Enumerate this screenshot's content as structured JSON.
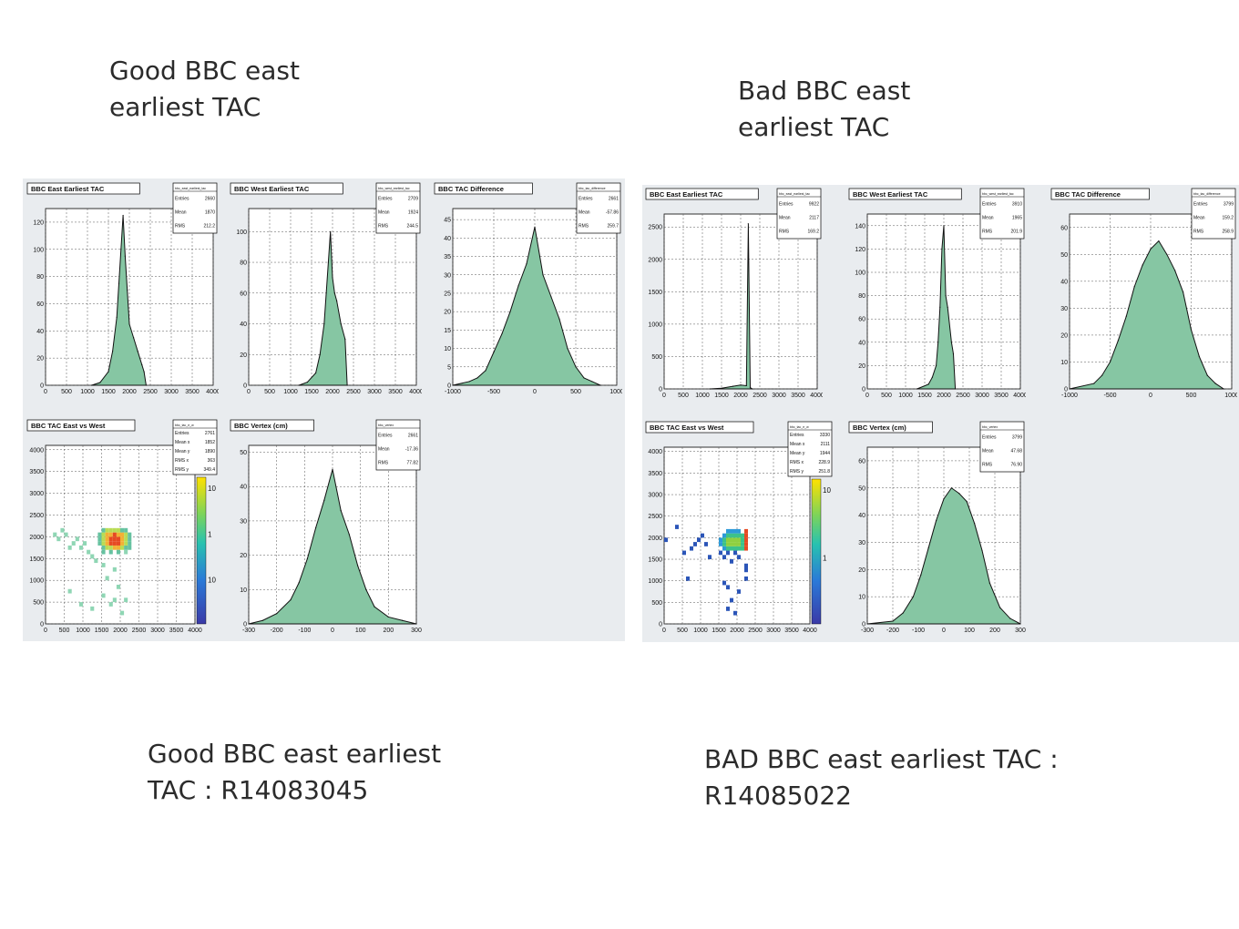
{
  "captions": {
    "top_left": "Good BBC east\nearliest TAC",
    "top_right": "Bad BBC east\nearliest TAC",
    "bottom_left": "Good BBC east earliest\nTAC : R14083045",
    "bottom_right": "BAD BBC east earliest TAC :\nR14085022"
  },
  "stat_labels": [
    "Entries",
    "Mean",
    "RMS"
  ],
  "stat_labels_2d": [
    "Entries",
    "Mean x",
    "Mean y",
    "RMS x",
    "RMS y"
  ],
  "chart_data": [
    {
      "id": "good-east",
      "type": "bar",
      "title": "BBC East Earliest TAC",
      "statname": "bbc_east_earliest_tac",
      "stats": [
        "2660",
        "1870",
        "212.2"
      ],
      "xlim": [
        0,
        4000
      ],
      "ylim": [
        0,
        130
      ],
      "xticks": [
        0,
        500,
        1000,
        1500,
        2000,
        2500,
        3000,
        3500,
        4000
      ],
      "yticks": [
        0,
        20,
        40,
        60,
        80,
        100,
        120
      ],
      "x": [
        1100,
        1300,
        1500,
        1600,
        1700,
        1750,
        1800,
        1850,
        1900,
        1950,
        2000,
        2100,
        2200,
        2300,
        2350,
        2400
      ],
      "y": [
        0,
        2,
        10,
        25,
        50,
        75,
        100,
        125,
        95,
        70,
        45,
        35,
        25,
        15,
        10,
        0
      ]
    },
    {
      "id": "good-west",
      "type": "bar",
      "title": "BBC West Earliest TAC",
      "statname": "bbc_west_earliest_tac",
      "stats": [
        "2709",
        "1924",
        "244.5"
      ],
      "xlim": [
        0,
        4000
      ],
      "ylim": [
        0,
        115
      ],
      "xticks": [
        0,
        500,
        1000,
        1500,
        2000,
        2500,
        3000,
        3500,
        4000
      ],
      "yticks": [
        0,
        20,
        40,
        60,
        80,
        100
      ],
      "x": [
        1200,
        1400,
        1600,
        1700,
        1800,
        1850,
        1900,
        1950,
        2000,
        2050,
        2100,
        2200,
        2300,
        2350
      ],
      "y": [
        0,
        2,
        8,
        20,
        40,
        60,
        80,
        100,
        70,
        60,
        55,
        40,
        30,
        0
      ]
    },
    {
      "id": "good-diff",
      "type": "bar",
      "title": "BBC TAC Difference",
      "statname": "bbc_tac_difference",
      "stats": [
        "2661",
        "-57.86",
        "259.7"
      ],
      "xlim": [
        -1000,
        1000
      ],
      "ylim": [
        0,
        48
      ],
      "xticks": [
        -1000,
        -500,
        0,
        500,
        1000
      ],
      "yticks": [
        0,
        5,
        10,
        15,
        20,
        25,
        30,
        35,
        40,
        45
      ],
      "x": [
        -1000,
        -800,
        -700,
        -600,
        -500,
        -400,
        -300,
        -200,
        -100,
        0,
        100,
        200,
        300,
        400,
        500,
        600,
        700,
        800
      ],
      "y": [
        0,
        1,
        2,
        4,
        9,
        14,
        20,
        27,
        33,
        43,
        30,
        24,
        18,
        10,
        5,
        2,
        1,
        0
      ]
    },
    {
      "id": "good-2d",
      "type": "heatmap",
      "title": "BBC TAC East vs West",
      "statname": "bbc_tac_e_w",
      "stats": [
        "2761",
        "1852",
        "1890",
        "363",
        "349.4"
      ],
      "xlim": [
        0,
        4000
      ],
      "ylim": [
        0,
        4100
      ],
      "xticks": [
        0,
        500,
        1000,
        1500,
        2000,
        2500,
        3000,
        3500,
        4000
      ],
      "yticks": [
        0,
        500,
        1000,
        1500,
        2000,
        2500,
        3000,
        3500,
        4000
      ],
      "zlabels": [
        "10",
        "1",
        "10"
      ],
      "points": [
        [
          1500,
          1700,
          2
        ],
        [
          1600,
          1700,
          3
        ],
        [
          1700,
          1700,
          3
        ],
        [
          1800,
          1700,
          4
        ],
        [
          1900,
          1700,
          4
        ],
        [
          2000,
          1700,
          3
        ],
        [
          2100,
          1700,
          2
        ],
        [
          2200,
          1700,
          2
        ],
        [
          1400,
          1800,
          2
        ],
        [
          1500,
          1800,
          3
        ],
        [
          1600,
          1800,
          4
        ],
        [
          1700,
          1800,
          5
        ],
        [
          1800,
          1800,
          5
        ],
        [
          1900,
          1800,
          5
        ],
        [
          2000,
          1800,
          4
        ],
        [
          2100,
          1800,
          3
        ],
        [
          2200,
          1800,
          2
        ],
        [
          1400,
          1900,
          2
        ],
        [
          1500,
          1900,
          3
        ],
        [
          1600,
          1900,
          4
        ],
        [
          1700,
          1900,
          5
        ],
        [
          1800,
          1900,
          5
        ],
        [
          1900,
          1900,
          5
        ],
        [
          2000,
          1900,
          4
        ],
        [
          2100,
          1900,
          3
        ],
        [
          2200,
          1900,
          2
        ],
        [
          1400,
          2000,
          2
        ],
        [
          1500,
          2000,
          3
        ],
        [
          1600,
          2000,
          4
        ],
        [
          1700,
          2000,
          4
        ],
        [
          1800,
          2000,
          5
        ],
        [
          1900,
          2000,
          4
        ],
        [
          2000,
          2000,
          4
        ],
        [
          2100,
          2000,
          3
        ],
        [
          2200,
          2000,
          2
        ],
        [
          1500,
          2100,
          2
        ],
        [
          1600,
          2100,
          3
        ],
        [
          1700,
          2100,
          3
        ],
        [
          1800,
          2100,
          3
        ],
        [
          1900,
          2100,
          3
        ],
        [
          2000,
          2100,
          2
        ],
        [
          2100,
          2100,
          2
        ],
        [
          1500,
          1600,
          2
        ],
        [
          1700,
          1600,
          2
        ],
        [
          1900,
          1600,
          2
        ],
        [
          2100,
          1600,
          1
        ],
        [
          500,
          2000,
          1
        ],
        [
          800,
          1900,
          1
        ],
        [
          1000,
          1800,
          1
        ],
        [
          900,
          1700,
          1
        ],
        [
          700,
          1800,
          1
        ],
        [
          1200,
          1500,
          1
        ],
        [
          1300,
          1400,
          1
        ],
        [
          1500,
          1300,
          1
        ],
        [
          1800,
          1200,
          1
        ],
        [
          600,
          1700,
          1
        ],
        [
          400,
          2100,
          1
        ],
        [
          200,
          2000,
          1
        ],
        [
          1100,
          1600,
          1
        ],
        [
          1600,
          1000,
          1
        ],
        [
          1900,
          800,
          1
        ],
        [
          2100,
          500,
          1
        ],
        [
          1700,
          400,
          1
        ],
        [
          1200,
          300,
          1
        ],
        [
          1500,
          600,
          1
        ],
        [
          2000,
          200,
          1
        ],
        [
          600,
          700,
          1
        ],
        [
          900,
          400,
          1
        ],
        [
          300,
          1900,
          1
        ],
        [
          1800,
          500,
          1
        ]
      ]
    },
    {
      "id": "good-vertex",
      "type": "bar",
      "title": "BBC Vertex (cm)",
      "statname": "bbc_vertex",
      "stats": [
        "2661",
        "-17.36",
        "77.82"
      ],
      "xlim": [
        -300,
        300
      ],
      "ylim": [
        0,
        52
      ],
      "xticks": [
        -300,
        -200,
        -100,
        0,
        100,
        200,
        300
      ],
      "yticks": [
        0,
        10,
        20,
        30,
        40,
        50
      ],
      "x": [
        -300,
        -250,
        -200,
        -150,
        -120,
        -90,
        -60,
        -30,
        0,
        30,
        60,
        90,
        120,
        150,
        200,
        250,
        300
      ],
      "y": [
        0,
        1,
        3,
        7,
        12,
        19,
        28,
        36,
        45,
        33,
        26,
        17,
        10,
        5,
        2,
        1,
        0
      ]
    },
    {
      "id": "bad-east",
      "type": "bar",
      "title": "BBC East Earliest TAC",
      "statname": "bbc_east_earliest_tac",
      "stats": [
        "9922",
        "2117",
        "169.2"
      ],
      "xlim": [
        0,
        4000
      ],
      "ylim": [
        0,
        2700
      ],
      "xticks": [
        0,
        500,
        1000,
        1500,
        2000,
        2500,
        3000,
        3500,
        4000
      ],
      "yticks": [
        0,
        500,
        1000,
        1500,
        2000,
        2500
      ],
      "x": [
        1200,
        1500,
        1800,
        2000,
        2150,
        2200,
        2250,
        2300
      ],
      "y": [
        0,
        10,
        40,
        60,
        50,
        2550,
        20,
        0
      ]
    },
    {
      "id": "bad-west",
      "type": "bar",
      "title": "BBC West Earliest TAC",
      "statname": "bbc_west_earliest_tac",
      "stats": [
        "3910",
        "1965",
        "201.9"
      ],
      "xlim": [
        0,
        4000
      ],
      "ylim": [
        0,
        150
      ],
      "xticks": [
        0,
        500,
        1000,
        1500,
        2000,
        2500,
        3000,
        3500,
        4000
      ],
      "yticks": [
        0,
        20,
        40,
        60,
        80,
        100,
        120,
        140
      ],
      "x": [
        1300,
        1600,
        1700,
        1800,
        1850,
        1900,
        1950,
        2000,
        2050,
        2100,
        2200,
        2250,
        2300
      ],
      "y": [
        0,
        4,
        10,
        20,
        40,
        70,
        120,
        140,
        80,
        70,
        40,
        30,
        0
      ]
    },
    {
      "id": "bad-diff",
      "type": "bar",
      "title": "BBC TAC Difference",
      "statname": "bbc_tac_difference",
      "stats": [
        "3799",
        "159.2",
        "258.9"
      ],
      "xlim": [
        -1000,
        1000
      ],
      "ylim": [
        0,
        65
      ],
      "xticks": [
        -1000,
        -500,
        0,
        500,
        1000
      ],
      "yticks": [
        0,
        10,
        20,
        30,
        40,
        50,
        60
      ],
      "x": [
        -1000,
        -700,
        -600,
        -500,
        -400,
        -300,
        -200,
        -100,
        0,
        100,
        200,
        300,
        400,
        500,
        600,
        700,
        800,
        900
      ],
      "y": [
        0,
        2,
        5,
        10,
        18,
        27,
        38,
        46,
        52,
        55,
        50,
        44,
        36,
        22,
        12,
        5,
        2,
        0
      ]
    },
    {
      "id": "bad-2d",
      "type": "heatmap",
      "title": "BBC TAC East vs West",
      "statname": "bbc_tac_e_w",
      "stats": [
        "3330",
        "2111",
        "1944",
        "228.9",
        "251.8"
      ],
      "xlim": [
        0,
        4000
      ],
      "ylim": [
        0,
        4100
      ],
      "xticks": [
        0,
        500,
        1000,
        1500,
        2000,
        2500,
        3000,
        3500,
        4000
      ],
      "yticks": [
        0,
        500,
        1000,
        1500,
        2000,
        2500,
        3000,
        3500,
        4000
      ],
      "zlabels": [
        "10",
        "1"
      ],
      "points": [
        [
          1600,
          1700,
          2
        ],
        [
          1700,
          1700,
          3
        ],
        [
          1800,
          1700,
          3
        ],
        [
          1900,
          1700,
          3
        ],
        [
          2000,
          1700,
          3
        ],
        [
          2100,
          1700,
          3
        ],
        [
          2200,
          1700,
          5
        ],
        [
          1500,
          1800,
          2
        ],
        [
          1600,
          1800,
          3
        ],
        [
          1700,
          1800,
          4
        ],
        [
          1800,
          1800,
          4
        ],
        [
          1900,
          1800,
          4
        ],
        [
          2000,
          1800,
          4
        ],
        [
          2100,
          1800,
          3
        ],
        [
          2200,
          1800,
          5
        ],
        [
          1500,
          1900,
          2
        ],
        [
          1600,
          1900,
          3
        ],
        [
          1700,
          1900,
          4
        ],
        [
          1800,
          1900,
          4
        ],
        [
          1900,
          1900,
          4
        ],
        [
          2000,
          1900,
          4
        ],
        [
          2100,
          1900,
          3
        ],
        [
          2200,
          1900,
          5
        ],
        [
          1600,
          2000,
          2
        ],
        [
          1700,
          2000,
          3
        ],
        [
          1800,
          2000,
          3
        ],
        [
          1900,
          2000,
          3
        ],
        [
          2000,
          2000,
          3
        ],
        [
          2100,
          2000,
          3
        ],
        [
          2200,
          2000,
          5
        ],
        [
          1700,
          2100,
          2
        ],
        [
          1800,
          2100,
          2
        ],
        [
          1900,
          2100,
          2
        ],
        [
          2000,
          2100,
          2
        ],
        [
          2200,
          2100,
          5
        ],
        [
          1700,
          1600,
          1
        ],
        [
          1900,
          1600,
          1
        ],
        [
          2000,
          1500,
          1
        ],
        [
          1800,
          1400,
          1
        ],
        [
          1600,
          1500,
          1
        ],
        [
          1500,
          1600,
          1
        ],
        [
          2200,
          1300,
          1
        ],
        [
          2200,
          1000,
          1
        ],
        [
          800,
          1800,
          1
        ],
        [
          900,
          1900,
          1
        ],
        [
          300,
          2200,
          1
        ],
        [
          500,
          1600,
          1
        ],
        [
          700,
          1700,
          1
        ],
        [
          1200,
          1500,
          1
        ],
        [
          1100,
          1800,
          1
        ],
        [
          600,
          1000,
          1
        ],
        [
          1600,
          900,
          1
        ],
        [
          1700,
          800,
          1
        ],
        [
          1800,
          500,
          1
        ],
        [
          2000,
          700,
          1
        ],
        [
          1700,
          300,
          1
        ],
        [
          1900,
          200,
          1
        ],
        [
          2200,
          1200,
          1
        ],
        [
          0,
          1900,
          1
        ],
        [
          1000,
          2000,
          1
        ]
      ]
    },
    {
      "id": "bad-vertex",
      "type": "bar",
      "title": "BBC Vertex (cm)",
      "statname": "bbc_vertex",
      "stats": [
        "3799",
        "47.68",
        "76.90"
      ],
      "xlim": [
        -300,
        300
      ],
      "ylim": [
        0,
        65
      ],
      "xticks": [
        -300,
        -200,
        -100,
        0,
        100,
        200,
        300
      ],
      "yticks": [
        0,
        10,
        20,
        30,
        40,
        50,
        60
      ],
      "x": [
        -300,
        -200,
        -160,
        -120,
        -90,
        -60,
        -30,
        0,
        30,
        60,
        90,
        120,
        150,
        180,
        220,
        260,
        300
      ],
      "y": [
        0,
        1,
        4,
        10,
        18,
        28,
        38,
        46,
        50,
        48,
        45,
        37,
        27,
        15,
        6,
        2,
        0
      ]
    }
  ]
}
